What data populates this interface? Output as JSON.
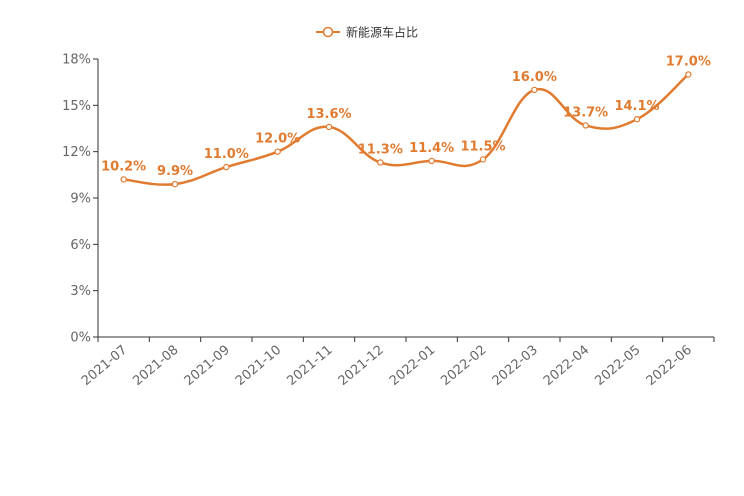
{
  "chart_data": {
    "type": "line",
    "smooth": true,
    "categories": [
      "2021-07",
      "2021-08",
      "2021-09",
      "2021-10",
      "2021-11",
      "2021-12",
      "2022-01",
      "2022-02",
      "2022-03",
      "2022-04",
      "2022-05",
      "2022-06"
    ],
    "series": [
      {
        "name": "新能源车占比",
        "values": [
          10.2,
          9.9,
          11.0,
          12.0,
          13.6,
          11.3,
          11.4,
          11.5,
          16.0,
          13.7,
          14.1,
          17.0
        ],
        "labels": [
          "10.2%",
          "9.9%",
          "11.0%",
          "12.0%",
          "13.6%",
          "11.3%",
          "11.4%",
          "11.5%",
          "16.0%",
          "13.7%",
          "14.1%",
          "17.0%"
        ],
        "color": "#e07b30"
      }
    ],
    "yticks": [
      "0%",
      "3%",
      "6%",
      "9%",
      "12%",
      "15%",
      "18%"
    ],
    "ylim": [
      0,
      18
    ],
    "ytick_step": 3,
    "legend_position": "top-center",
    "grid": false,
    "axis_color": "#333333",
    "label_color": "#666666"
  }
}
